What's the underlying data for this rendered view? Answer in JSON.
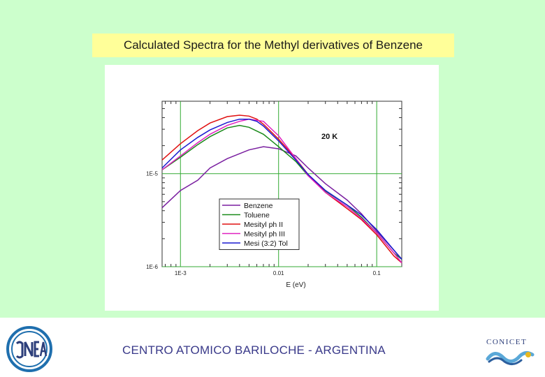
{
  "slide": {
    "title": "Calculated Spectra for the Methyl derivatives of Benzene",
    "footer": "CENTRO ATOMICO BARILOCHE - ARGENTINA",
    "logos": {
      "left": "CNEA",
      "right": "CONICET"
    },
    "colors": {
      "background": "#ccffcc",
      "title_bg": "#ffff99",
      "footer_text": "#3a3a8a"
    }
  },
  "chart_data": {
    "type": "line",
    "annotation": "20 K",
    "xlabel": "E (eV)",
    "ylabel": "",
    "xscale": "log",
    "yscale": "log",
    "xlim": [
      0.00065,
      0.18
    ],
    "ylim": [
      1e-06,
      6e-05
    ],
    "xticks": [
      {
        "value": 0.001,
        "label": "1E-3"
      },
      {
        "value": 0.01,
        "label": "0.01"
      },
      {
        "value": 0.1,
        "label": "0.1"
      }
    ],
    "yticks": [
      {
        "value": 1e-06,
        "label": "1E-6"
      },
      {
        "value": 1e-05,
        "label": "1E-5"
      }
    ],
    "legend_position": "bottom-center",
    "grid": "major",
    "series": [
      {
        "name": "Benzene",
        "color": "#7a1fa0",
        "x": [
          0.00065,
          0.001,
          0.0015,
          0.002,
          0.003,
          0.005,
          0.007,
          0.01,
          0.015,
          0.02,
          0.03,
          0.05,
          0.07,
          0.1,
          0.15,
          0.18
        ],
        "y": [
          4.3e-06,
          6.6e-06,
          8.5e-06,
          1.15e-05,
          1.45e-05,
          1.8e-05,
          1.95e-05,
          1.85e-05,
          1.55e-05,
          1.15e-05,
          7.8e-06,
          5.2e-06,
          3.7e-06,
          2.4e-06,
          1.5e-06,
          1.2e-06
        ]
      },
      {
        "name": "Toluene",
        "color": "#1a8a1a",
        "x": [
          0.00065,
          0.001,
          0.0015,
          0.002,
          0.003,
          0.004,
          0.005,
          0.007,
          0.01,
          0.015,
          0.02,
          0.03,
          0.05,
          0.07,
          0.1,
          0.15,
          0.18
        ],
        "y": [
          1.1e-05,
          1.5e-05,
          2.05e-05,
          2.5e-05,
          3.1e-05,
          3.3e-05,
          3.15e-05,
          2.65e-05,
          1.95e-05,
          1.35e-05,
          9.5e-06,
          6.5e-06,
          4.6e-06,
          3.4e-06,
          2.3e-06,
          1.4e-06,
          1.2e-06
        ]
      },
      {
        "name": "Mesityl ph II",
        "color": "#e01010",
        "x": [
          0.00065,
          0.001,
          0.0015,
          0.002,
          0.003,
          0.004,
          0.005,
          0.006,
          0.007,
          0.01,
          0.015,
          0.02,
          0.03,
          0.05,
          0.07,
          0.1,
          0.15,
          0.18
        ],
        "y": [
          1.4e-05,
          2.1e-05,
          2.9e-05,
          3.5e-05,
          4.1e-05,
          4.25e-05,
          4.15e-05,
          3.85e-05,
          3.4e-05,
          2.35e-05,
          1.45e-05,
          9.8e-06,
          6.3e-06,
          4.2e-06,
          3.2e-06,
          2.2e-06,
          1.3e-06,
          1.1e-06
        ]
      },
      {
        "name": "Mesityl ph III",
        "color": "#e020c0",
        "x": [
          0.00065,
          0.001,
          0.0015,
          0.002,
          0.003,
          0.004,
          0.005,
          0.007,
          0.01,
          0.015,
          0.02,
          0.03,
          0.05,
          0.07,
          0.1,
          0.15,
          0.18
        ],
        "y": [
          1.1e-05,
          1.55e-05,
          2.15e-05,
          2.65e-05,
          3.3e-05,
          3.65e-05,
          3.85e-05,
          3.65e-05,
          2.55e-05,
          1.45e-05,
          9.5e-06,
          6.3e-06,
          4.4e-06,
          3.3e-06,
          2.3e-06,
          1.4e-06,
          1.1e-06
        ]
      },
      {
        "name": "Mesi (3:2) Tol",
        "color": "#1a1ad0",
        "x": [
          0.00065,
          0.001,
          0.0015,
          0.002,
          0.003,
          0.004,
          0.005,
          0.006,
          0.007,
          0.01,
          0.015,
          0.02,
          0.03,
          0.05,
          0.07,
          0.1,
          0.15,
          0.18
        ],
        "y": [
          1.15e-05,
          1.8e-05,
          2.45e-05,
          2.95e-05,
          3.55e-05,
          3.85e-05,
          3.85e-05,
          3.65e-05,
          3.25e-05,
          2.25e-05,
          1.4e-05,
          9.8e-06,
          6.6e-06,
          4.6e-06,
          3.6e-06,
          2.5e-06,
          1.5e-06,
          1.2e-06
        ]
      }
    ]
  }
}
